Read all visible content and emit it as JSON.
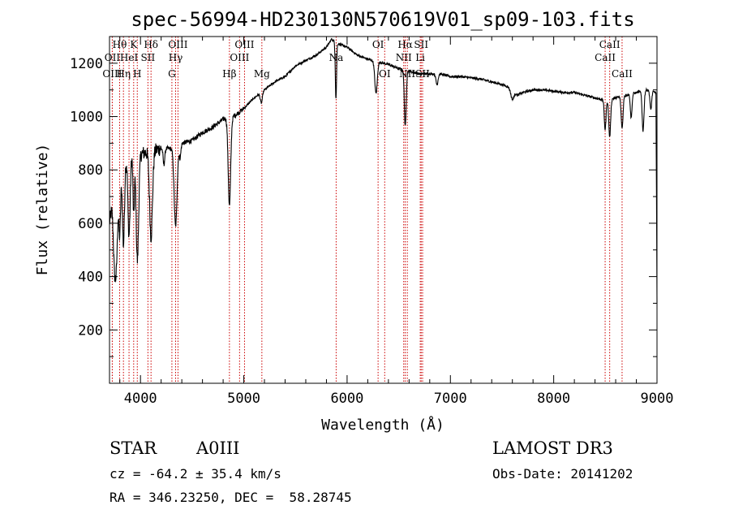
{
  "chart_data": {
    "type": "line",
    "title": "spec-56994-HD230130N570619V01_sp09-103.fits",
    "xlabel": "Wavelength (Å)",
    "ylabel": "Flux (relative)",
    "xlim": [
      3700,
      9000
    ],
    "ylim": [
      0,
      1300
    ],
    "x_ticks": [
      4000,
      5000,
      6000,
      7000,
      8000,
      9000
    ],
    "y_ticks": [
      200,
      400,
      600,
      800,
      1000,
      1200
    ],
    "continuum": [
      [
        3700,
        600
      ],
      [
        3780,
        820
      ],
      [
        3900,
        860
      ],
      [
        4000,
        860
      ],
      [
        4100,
        870
      ],
      [
        4200,
        880
      ],
      [
        4300,
        880
      ],
      [
        4400,
        900
      ],
      [
        4500,
        910
      ],
      [
        4600,
        940
      ],
      [
        4700,
        960
      ],
      [
        4800,
        990
      ],
      [
        4900,
        1000
      ],
      [
        5000,
        1030
      ],
      [
        5100,
        1070
      ],
      [
        5200,
        1100
      ],
      [
        5300,
        1130
      ],
      [
        5400,
        1150
      ],
      [
        5500,
        1190
      ],
      [
        5600,
        1210
      ],
      [
        5700,
        1230
      ],
      [
        5800,
        1260
      ],
      [
        5850,
        1290
      ],
      [
        5900,
        1275
      ],
      [
        6000,
        1260
      ],
      [
        6100,
        1230
      ],
      [
        6200,
        1215
      ],
      [
        6300,
        1205
      ],
      [
        6400,
        1195
      ],
      [
        6500,
        1180
      ],
      [
        6600,
        1170
      ],
      [
        6700,
        1160
      ],
      [
        6800,
        1160
      ],
      [
        6900,
        1160
      ],
      [
        7000,
        1150
      ],
      [
        7100,
        1150
      ],
      [
        7200,
        1145
      ],
      [
        7300,
        1140
      ],
      [
        7400,
        1130
      ],
      [
        7500,
        1120
      ],
      [
        7600,
        1105
      ],
      [
        7650,
        1080
      ],
      [
        7700,
        1090
      ],
      [
        7800,
        1100
      ],
      [
        7900,
        1100
      ],
      [
        8000,
        1095
      ],
      [
        8100,
        1090
      ],
      [
        8200,
        1090
      ],
      [
        8300,
        1080
      ],
      [
        8400,
        1070
      ],
      [
        8500,
        1060
      ],
      [
        8600,
        1070
      ],
      [
        8700,
        1080
      ],
      [
        8800,
        1090
      ],
      [
        8900,
        1100
      ],
      [
        8990,
        1090
      ],
      [
        9000,
        300
      ]
    ],
    "absorption_features": [
      {
        "wavelength": 3750,
        "depth": 300,
        "width": 12
      },
      {
        "wavelength": 3770,
        "depth": 260,
        "width": 10
      },
      {
        "wavelength": 3798,
        "depth": 270,
        "width": 10
      },
      {
        "wavelength": 3835,
        "depth": 320,
        "width": 10
      },
      {
        "wavelength": 3889,
        "depth": 300,
        "width": 11
      },
      {
        "wavelength": 3934,
        "depth": 230,
        "width": 7
      },
      {
        "wavelength": 3970,
        "depth": 400,
        "width": 12
      },
      {
        "wavelength": 4102,
        "depth": 320,
        "width": 14
      },
      {
        "wavelength": 4227,
        "depth": 60,
        "width": 8
      },
      {
        "wavelength": 4340,
        "depth": 300,
        "width": 14
      },
      {
        "wavelength": 4383,
        "depth": 50,
        "width": 8
      },
      {
        "wavelength": 4861,
        "depth": 330,
        "width": 12
      },
      {
        "wavelength": 5170,
        "depth": 40,
        "width": 10
      },
      {
        "wavelength": 5892,
        "depth": 210,
        "width": 6
      },
      {
        "wavelength": 6280,
        "depth": 120,
        "width": 12
      },
      {
        "wavelength": 6563,
        "depth": 210,
        "width": 9
      },
      {
        "wavelength": 6870,
        "depth": 40,
        "width": 10
      },
      {
        "wavelength": 7600,
        "depth": 40,
        "width": 15
      },
      {
        "wavelength": 8498,
        "depth": 110,
        "width": 8
      },
      {
        "wavelength": 8542,
        "depth": 140,
        "width": 9
      },
      {
        "wavelength": 8662,
        "depth": 120,
        "width": 9
      },
      {
        "wavelength": 8750,
        "depth": 90,
        "width": 8
      },
      {
        "wavelength": 8865,
        "depth": 150,
        "width": 9
      },
      {
        "wavelength": 8940,
        "depth": 70,
        "width": 8
      }
    ],
    "line_markers": [
      {
        "label": "Hθ",
        "wavelength": 3798,
        "row": 1
      },
      {
        "label": "OII",
        "wavelength": 3727,
        "row": 2
      },
      {
        "label": "OIII",
        "wavelength": 3727,
        "row": 3
      },
      {
        "label": "Hη",
        "wavelength": 3835,
        "row": 3
      },
      {
        "label": "HeI",
        "wavelength": 3889,
        "row": 2
      },
      {
        "label": "K",
        "wavelength": 3934,
        "row": 1
      },
      {
        "label": "SII",
        "wavelength": 4072,
        "row": 2
      },
      {
        "label": "H",
        "wavelength": 3969,
        "row": 3
      },
      {
        "label": "Hδ",
        "wavelength": 4102,
        "row": 1
      },
      {
        "label": "OIII",
        "wavelength": 4363,
        "row": 1
      },
      {
        "label": "Hγ",
        "wavelength": 4340,
        "row": 2
      },
      {
        "label": "G",
        "wavelength": 4304,
        "row": 3
      },
      {
        "label": "OIII",
        "wavelength": 5007,
        "row": 1
      },
      {
        "label": "OIII",
        "wavelength": 4959,
        "row": 2
      },
      {
        "label": "Hβ",
        "wavelength": 4861,
        "row": 3
      },
      {
        "label": "Mg",
        "wavelength": 5175,
        "row": 3
      },
      {
        "label": "Na",
        "wavelength": 5894,
        "row": 2
      },
      {
        "label": "OI",
        "wavelength": 6300,
        "row": 1
      },
      {
        "label": "OI",
        "wavelength": 6364,
        "row": 3
      },
      {
        "label": "Hα",
        "wavelength": 6563,
        "row": 1
      },
      {
        "label": "SII",
        "wavelength": 6717,
        "row": 1
      },
      {
        "label": "NII",
        "wavelength": 6548,
        "row": 2
      },
      {
        "label": "Li",
        "wavelength": 6708,
        "row": 2
      },
      {
        "label": "NII",
        "wavelength": 6583,
        "row": 3
      },
      {
        "label": "SII",
        "wavelength": 6731,
        "row": 3
      },
      {
        "label": "CaII",
        "wavelength": 8542,
        "row": 1
      },
      {
        "label": "CaII",
        "wavelength": 8498,
        "row": 2
      },
      {
        "label": "CaII",
        "wavelength": 8662,
        "row": 3
      }
    ]
  },
  "info": {
    "object_class": "STAR",
    "subclass": "A0III",
    "survey": "LAMOST DR3",
    "redshift": "cz = -64.2 ± 35.4 km/s",
    "obs_date": "Obs-Date: 20141202",
    "coords": "RA = 346.23250, DEC =  58.28745"
  },
  "colors": {
    "spectrum": "#000000",
    "marker": "#cc0000",
    "axis": "#000000"
  }
}
